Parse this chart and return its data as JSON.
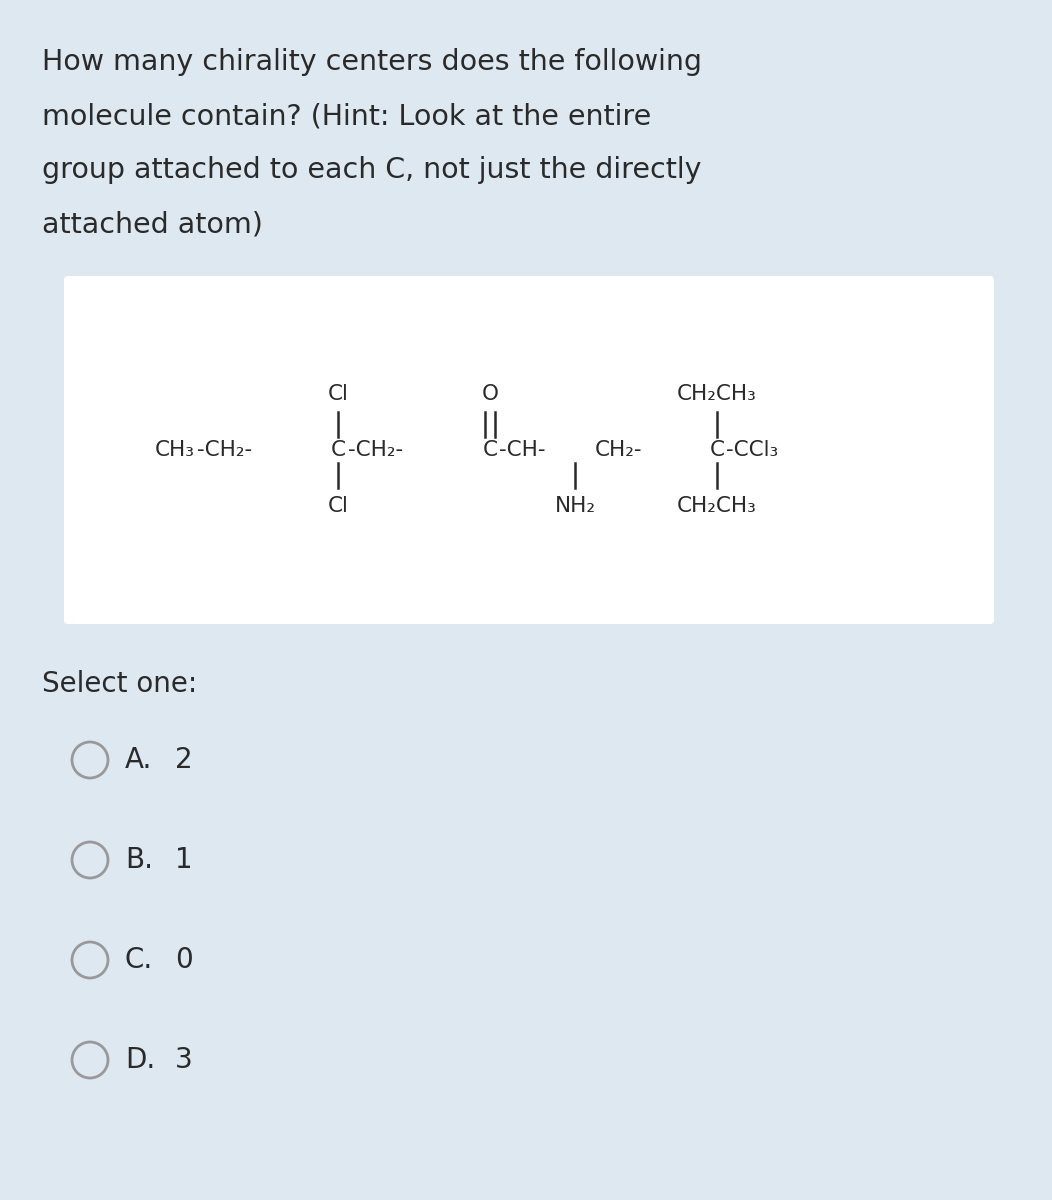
{
  "bg_color": "#dde8f0",
  "white_box_color": "#ffffff",
  "question_text_lines": [
    "How many chirality centers does the following",
    "molecule contain? (Hint: Look at the entire",
    "group attached to each C, not just the directly",
    "attached atom)"
  ],
  "question_fontsize": 20.5,
  "text_color": "#2a2a2a",
  "select_one_text": "Select one:",
  "select_one_fontsize": 20,
  "options": [
    [
      "A.",
      "2"
    ],
    [
      "B.",
      "1"
    ],
    [
      "C.",
      "0"
    ],
    [
      "D.",
      "3"
    ]
  ],
  "option_fontsize": 20,
  "circle_color": "#999999",
  "mol_fontsize": 15.5,
  "mol_small_fontsize": 13.5
}
